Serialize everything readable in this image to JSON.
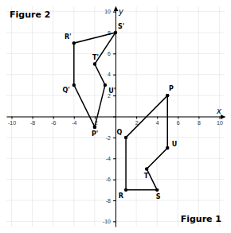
{
  "chart_data": {
    "type": "line",
    "xlabel": "x",
    "ylabel": "y",
    "xlim": [
      -10.5,
      10.5
    ],
    "ylim": [
      -10.5,
      10.5
    ],
    "xticks": [
      -10,
      -8,
      -6,
      -4,
      -2,
      {
        "value": 0,
        "label": null
      },
      2,
      4,
      6,
      8,
      10
    ],
    "yticks": [
      -10,
      -8,
      -6,
      -4,
      -2,
      {
        "value": 0,
        "label": null
      },
      2,
      4,
      6,
      8,
      10
    ],
    "grid": true,
    "marker": "circle",
    "series": [
      {
        "name": "Figure 1",
        "color": "#000000",
        "x": [
          5,
          1,
          1,
          4,
          3,
          5,
          5
        ],
        "values": [
          2,
          -2,
          -7,
          -7,
          -5,
          -3,
          2
        ],
        "point_labels": [
          "P",
          "Q",
          "R",
          "S",
          "T",
          "U",
          null
        ]
      },
      {
        "name": "Figure 2",
        "color": "#000000",
        "x": [
          -2,
          -4,
          -4,
          0,
          -2,
          -1,
          -2
        ],
        "values": [
          -1,
          3,
          7,
          8,
          5,
          3,
          -1
        ],
        "point_labels": [
          "P'",
          "Q'",
          "R'",
          "S'",
          "T'",
          "U'",
          null
        ]
      }
    ]
  }
}
